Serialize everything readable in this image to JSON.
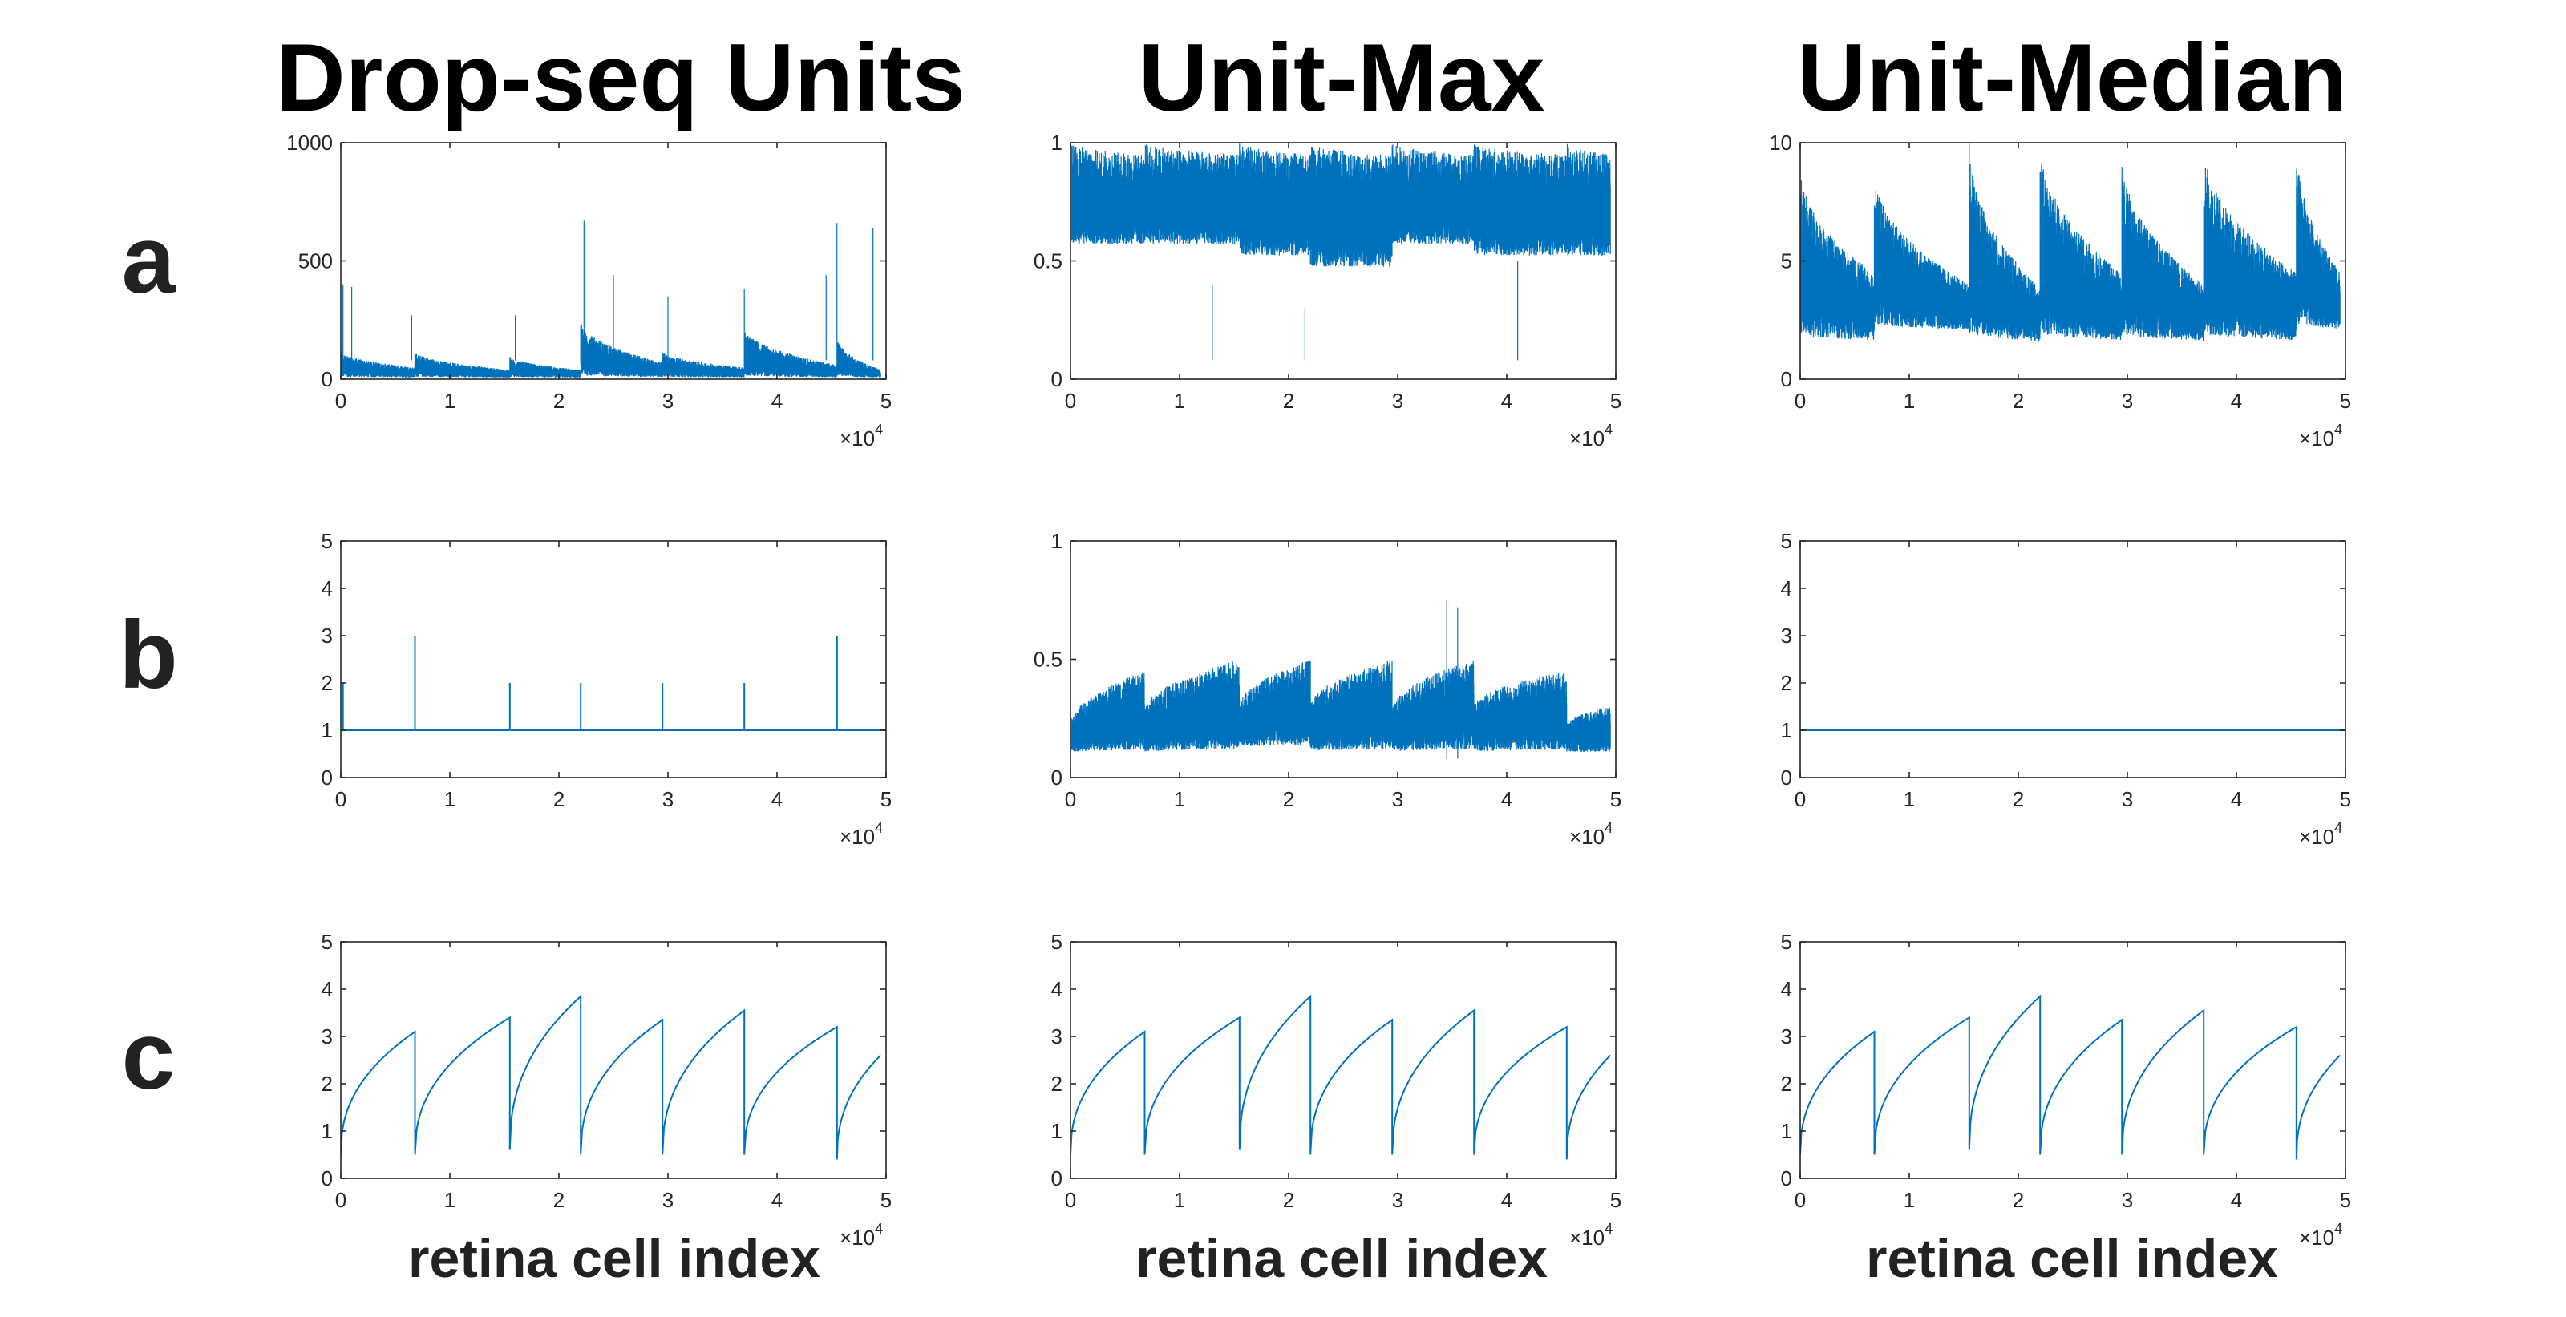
{
  "column_titles": [
    "Drop-seq Units",
    "Unit-Max",
    "Unit-Median"
  ],
  "row_labels": [
    "a",
    "b",
    "c"
  ],
  "xlabel": "retina cell index",
  "x_multiplier": {
    "base": "×10",
    "exponent": "4"
  },
  "colors": {
    "series": "#0072BD",
    "axis": "#262626"
  },
  "chart_data": [
    {
      "panel": "a",
      "column": "Drop-seq Units",
      "type": "line",
      "xlim": [
        0,
        5
      ],
      "ylim": [
        0,
        1000
      ],
      "xticks": [
        0,
        1,
        2,
        3,
        4,
        5
      ],
      "yticks": [
        0,
        500,
        1000
      ],
      "xticklabels": [
        "0",
        "1",
        "2",
        "3",
        "4",
        "5"
      ],
      "yticklabels": [
        "0",
        "500",
        "1000"
      ],
      "series": [
        {
          "style": "noisy-band",
          "segment_boundaries": [
            0,
            0.68,
            1.55,
            2.2,
            2.95,
            3.7,
            4.55,
            4.95
          ],
          "band_low": [
            5,
            5,
            5,
            5,
            5,
            5,
            5
          ],
          "band_high_start": [
            120,
            120,
            100,
            250,
            120,
            220,
            180
          ],
          "band_high_end": [
            50,
            40,
            40,
            70,
            50,
            60,
            40
          ],
          "spikes": [
            [
              0.02,
              400
            ],
            [
              0.1,
              390
            ],
            [
              0.65,
              270
            ],
            [
              1.6,
              270
            ],
            [
              2.23,
              670
            ],
            [
              2.5,
              440
            ],
            [
              3.0,
              350
            ],
            [
              3.7,
              380
            ],
            [
              4.45,
              440
            ],
            [
              4.55,
              660
            ],
            [
              4.88,
              640
            ]
          ]
        }
      ]
    },
    {
      "panel": "a",
      "column": "Unit-Max",
      "type": "line",
      "xlim": [
        0,
        5
      ],
      "ylim": [
        0,
        1
      ],
      "xticks": [
        0,
        1,
        2,
        3,
        4,
        5
      ],
      "yticks": [
        0,
        0.5,
        1
      ],
      "xticklabels": [
        "0",
        "1",
        "2",
        "3",
        "4",
        "5"
      ],
      "yticklabels": [
        "0",
        "0.5",
        "1"
      ],
      "series": [
        {
          "style": "noisy-band",
          "segment_boundaries": [
            0,
            0.68,
            1.55,
            2.2,
            2.95,
            3.7,
            4.55,
            4.95
          ],
          "band_low": [
            0.55,
            0.55,
            0.5,
            0.45,
            0.55,
            0.5,
            0.5
          ],
          "band_high_start": [
            1,
            1,
            1,
            1,
            1,
            1,
            1
          ],
          "band_high_end": [
            0.95,
            0.95,
            0.95,
            0.95,
            0.95,
            0.95,
            0.95
          ],
          "spikes": [
            [
              2.15,
              0.3
            ],
            [
              1.3,
              0.4
            ],
            [
              4.1,
              0.5
            ]
          ]
        }
      ]
    },
    {
      "panel": "a",
      "column": "Unit-Median",
      "type": "line",
      "xlim": [
        0,
        5
      ],
      "ylim": [
        0,
        10
      ],
      "xticks": [
        0,
        1,
        2,
        3,
        4,
        5
      ],
      "yticks": [
        0,
        5,
        10
      ],
      "xticklabels": [
        "0",
        "1",
        "2",
        "3",
        "4",
        "5"
      ],
      "yticklabels": [
        "0",
        "5",
        "10"
      ],
      "series": [
        {
          "style": "noisy-band",
          "segment_boundaries": [
            0,
            0.68,
            1.55,
            2.2,
            2.95,
            3.7,
            4.55,
            4.95
          ],
          "band_low": [
            1.5,
            2,
            1.5,
            1.5,
            1.5,
            1.5,
            2
          ],
          "band_high_start": [
            9,
            8.8,
            10,
            10,
            9.5,
            10,
            10
          ],
          "band_high_end": [
            4.5,
            4,
            3.8,
            4.5,
            4,
            4.5,
            4.5
          ],
          "spikes": []
        }
      ]
    },
    {
      "panel": "b",
      "column": "Drop-seq Units",
      "type": "line",
      "xlim": [
        0,
        5
      ],
      "ylim": [
        0,
        5
      ],
      "xticks": [
        0,
        1,
        2,
        3,
        4,
        5
      ],
      "yticks": [
        0,
        1,
        2,
        3,
        4,
        5
      ],
      "xticklabels": [
        "0",
        "1",
        "2",
        "3",
        "4",
        "5"
      ],
      "yticklabels": [
        "0",
        "1",
        "2",
        "3",
        "4",
        "5"
      ],
      "series": [
        {
          "style": "baseline-spikes",
          "baseline": 1,
          "spikes": [
            [
              0.02,
              2
            ],
            [
              0.68,
              3
            ],
            [
              1.55,
              2
            ],
            [
              2.2,
              2
            ],
            [
              2.95,
              2
            ],
            [
              3.7,
              2
            ],
            [
              4.55,
              3
            ]
          ]
        }
      ]
    },
    {
      "panel": "b",
      "column": "Unit-Max",
      "type": "line",
      "xlim": [
        0,
        5
      ],
      "ylim": [
        0,
        1
      ],
      "xticks": [
        0,
        1,
        2,
        3,
        4,
        5
      ],
      "yticks": [
        0,
        0.5,
        1
      ],
      "xticklabels": [
        "0",
        "1",
        "2",
        "3",
        "4",
        "5"
      ],
      "yticklabels": [
        "0",
        "0.5",
        "1"
      ],
      "series": [
        {
          "style": "noisy-band",
          "segment_boundaries": [
            0,
            0.68,
            1.55,
            2.2,
            2.95,
            3.7,
            4.55,
            4.95
          ],
          "band_low": [
            0.1,
            0.1,
            0.12,
            0.1,
            0.1,
            0.1,
            0.1
          ],
          "band_high_start": [
            0.22,
            0.28,
            0.3,
            0.3,
            0.28,
            0.3,
            0.22
          ],
          "band_high_end": [
            0.45,
            0.5,
            0.5,
            0.5,
            0.5,
            0.45,
            0.3
          ],
          "spikes": [
            [
              3.45,
              0.75
            ],
            [
              3.55,
              0.72
            ]
          ]
        }
      ]
    },
    {
      "panel": "b",
      "column": "Unit-Median",
      "type": "line",
      "xlim": [
        0,
        5
      ],
      "ylim": [
        0,
        5
      ],
      "xticks": [
        0,
        1,
        2,
        3,
        4,
        5
      ],
      "yticks": [
        0,
        1,
        2,
        3,
        4,
        5
      ],
      "xticklabels": [
        "0",
        "1",
        "2",
        "3",
        "4",
        "5"
      ],
      "yticklabels": [
        "0",
        "1",
        "2",
        "3",
        "4",
        "5"
      ],
      "series": [
        {
          "style": "baseline-spikes",
          "baseline": 1,
          "spikes": []
        }
      ]
    },
    {
      "panel": "c",
      "column": "Drop-seq Units",
      "type": "line",
      "xlim": [
        0,
        5
      ],
      "ylim": [
        0,
        5
      ],
      "xticks": [
        0,
        1,
        2,
        3,
        4,
        5
      ],
      "yticks": [
        0,
        1,
        2,
        3,
        4,
        5
      ],
      "xticklabels": [
        "0",
        "1",
        "2",
        "3",
        "4",
        "5"
      ],
      "yticklabels": [
        "0",
        "1",
        "2",
        "3",
        "4",
        "5"
      ],
      "series": [
        {
          "style": "sawtooth",
          "segment_boundaries": [
            0,
            0.68,
            1.55,
            2.2,
            2.95,
            3.7,
            4.55,
            4.95
          ],
          "segment_start": [
            0.5,
            0.5,
            0.6,
            0.5,
            0.5,
            0.5,
            0.4
          ],
          "segment_end": [
            3.1,
            3.4,
            3.85,
            3.35,
            3.55,
            3.2,
            2.6
          ]
        }
      ]
    },
    {
      "panel": "c",
      "column": "Unit-Max",
      "type": "line",
      "xlim": [
        0,
        5
      ],
      "ylim": [
        0,
        5
      ],
      "xticks": [
        0,
        1,
        2,
        3,
        4,
        5
      ],
      "yticks": [
        0,
        1,
        2,
        3,
        4,
        5
      ],
      "xticklabels": [
        "0",
        "1",
        "2",
        "3",
        "4",
        "5"
      ],
      "yticklabels": [
        "0",
        "1",
        "2",
        "3",
        "4",
        "5"
      ],
      "series": [
        {
          "style": "sawtooth",
          "segment_boundaries": [
            0,
            0.68,
            1.55,
            2.2,
            2.95,
            3.7,
            4.55,
            4.95
          ],
          "segment_start": [
            0.5,
            0.5,
            0.6,
            0.5,
            0.5,
            0.5,
            0.4
          ],
          "segment_end": [
            3.1,
            3.4,
            3.85,
            3.35,
            3.55,
            3.2,
            2.6
          ]
        }
      ]
    },
    {
      "panel": "c",
      "column": "Unit-Median",
      "type": "line",
      "xlim": [
        0,
        5
      ],
      "ylim": [
        0,
        5
      ],
      "xticks": [
        0,
        1,
        2,
        3,
        4,
        5
      ],
      "yticks": [
        0,
        1,
        2,
        3,
        4,
        5
      ],
      "xticklabels": [
        "0",
        "1",
        "2",
        "3",
        "4",
        "5"
      ],
      "yticklabels": [
        "0",
        "1",
        "2",
        "3",
        "4",
        "5"
      ],
      "series": [
        {
          "style": "sawtooth",
          "segment_boundaries": [
            0,
            0.68,
            1.55,
            2.2,
            2.95,
            3.7,
            4.55,
            4.95
          ],
          "segment_start": [
            0.5,
            0.5,
            0.6,
            0.5,
            0.5,
            0.5,
            0.4
          ],
          "segment_end": [
            3.1,
            3.4,
            3.85,
            3.35,
            3.55,
            3.2,
            2.6
          ]
        }
      ]
    }
  ]
}
